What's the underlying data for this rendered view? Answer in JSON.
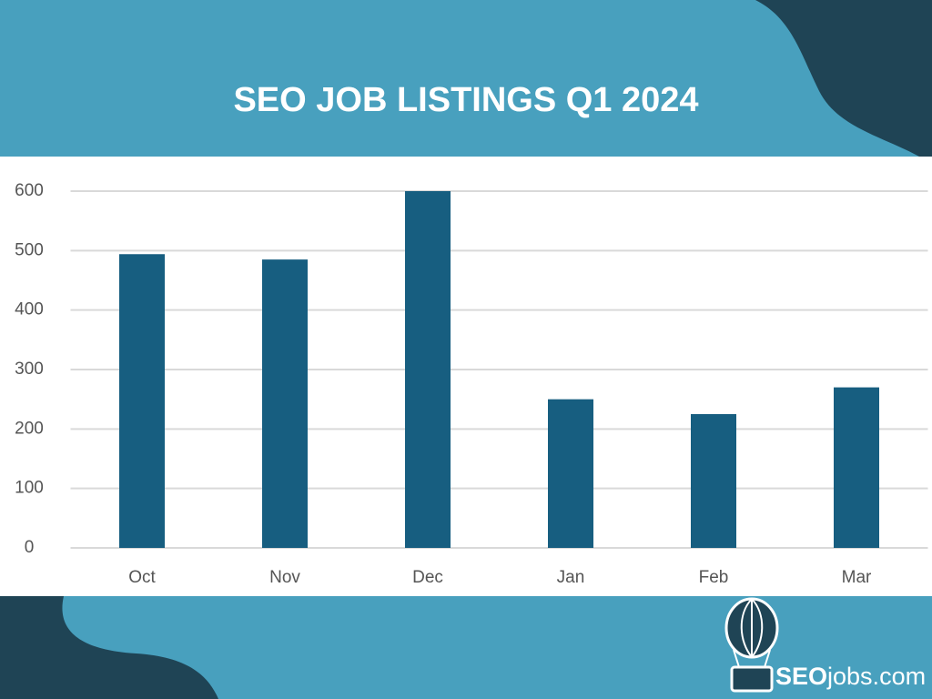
{
  "chart_data": {
    "type": "bar",
    "title": "SEO JOB LISTINGS Q1 2024",
    "categories": [
      "Oct",
      "Nov",
      "Dec",
      "Jan",
      "Feb",
      "Mar"
    ],
    "values": [
      494,
      485,
      600,
      250,
      225,
      270
    ],
    "color": "#175e80",
    "ylim": [
      0,
      600
    ],
    "yticks": [
      0,
      100,
      200,
      300,
      400,
      500,
      600
    ],
    "grid": true
  },
  "logo": {
    "bold": "SEO",
    "rest": "jobs.com"
  }
}
